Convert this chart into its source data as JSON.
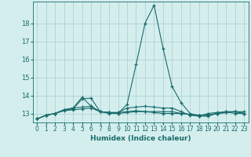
{
  "xlabel": "Humidex (Indice chaleur)",
  "background_color": "#d4eeee",
  "grid_color": "#a8cccc",
  "line_color": "#1a6b6b",
  "xlim": [
    -0.5,
    23.5
  ],
  "ylim": [
    12.5,
    19.2
  ],
  "yticks": [
    13,
    14,
    15,
    16,
    17,
    18
  ],
  "xticks": [
    0,
    1,
    2,
    3,
    4,
    5,
    6,
    7,
    8,
    9,
    10,
    11,
    12,
    13,
    14,
    15,
    16,
    17,
    18,
    19,
    20,
    21,
    22,
    23
  ],
  "series": [
    [
      12.7,
      12.9,
      13.0,
      13.2,
      13.25,
      13.8,
      13.85,
      13.1,
      13.05,
      13.0,
      13.5,
      15.7,
      18.0,
      19.0,
      16.6,
      14.5,
      13.6,
      13.0,
      12.85,
      13.0,
      13.05,
      13.1,
      13.0,
      13.0
    ],
    [
      12.7,
      12.9,
      13.0,
      13.2,
      13.3,
      13.9,
      13.4,
      13.1,
      13.05,
      13.05,
      13.3,
      13.35,
      13.4,
      13.35,
      13.3,
      13.3,
      13.1,
      12.9,
      12.85,
      12.85,
      13.0,
      13.1,
      13.1,
      13.1
    ],
    [
      12.7,
      12.9,
      13.0,
      13.2,
      13.3,
      13.35,
      13.4,
      13.1,
      13.05,
      13.05,
      13.1,
      13.15,
      13.1,
      13.1,
      13.1,
      13.1,
      13.0,
      12.95,
      12.9,
      12.9,
      13.0,
      13.05,
      13.1,
      13.0
    ],
    [
      12.7,
      12.9,
      13.0,
      13.15,
      13.2,
      13.25,
      13.3,
      13.1,
      13.0,
      13.0,
      13.05,
      13.1,
      13.1,
      13.05,
      13.0,
      13.0,
      13.0,
      12.95,
      12.9,
      12.9,
      13.0,
      13.05,
      13.1,
      13.0
    ]
  ]
}
